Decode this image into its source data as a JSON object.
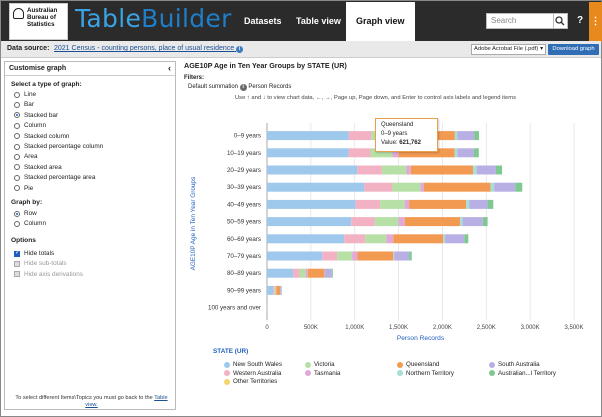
{
  "header": {
    "logo_lines": [
      "Australian",
      "Bureau of",
      "Statistics"
    ],
    "brand_a": "Table",
    "brand_b": "Builder",
    "nav": [
      "Datasets",
      "Table view",
      "Graph view"
    ],
    "search_placeholder": "Search",
    "help_label": "?",
    "menu_label": "⋮"
  },
  "datasource": {
    "label": "Data source:",
    "value": "2021 Census - counting persons, place of usual residence",
    "format": "Adobe Acrobat File (.pdf)",
    "download_label": "Download graph"
  },
  "sidebar": {
    "title": "Customise graph",
    "type_heading": "Select a type of graph:",
    "types": [
      "Line",
      "Bar",
      "Stacked bar",
      "Column",
      "Stacked column",
      "Stacked percentage column",
      "Area",
      "Stacked area",
      "Stacked percentage area",
      "Pie"
    ],
    "type_selected": "Stacked bar",
    "graphby_heading": "Graph by:",
    "graphby": [
      "Row",
      "Column"
    ],
    "graphby_selected": "Row",
    "options_heading": "Options",
    "options": [
      {
        "label": "Hide totals",
        "checked": true,
        "disabled": false
      },
      {
        "label": "Hide sub-totals",
        "checked": false,
        "disabled": true
      },
      {
        "label": "Hide axis derivations",
        "checked": false,
        "disabled": true
      }
    ],
    "footer_text": "To select different Items\\Topics you must go back to the",
    "footer_link": "Table view."
  },
  "graph": {
    "title": "AGE10P Age in Ten Year Groups by STATE (UR)",
    "filters_label": "Filters:",
    "filter_name": "Default summation",
    "filter_value": "Person Records",
    "hint": "Use ↑ and ↓ to view chart data, ←, →, Page up, Page down, and Enter to control axis labels and legend items",
    "tooltip": {
      "series": "Queensland",
      "category": "0–9 years",
      "value_label": "Value:",
      "value": "621,762"
    }
  },
  "chart_data": {
    "type": "bar",
    "orientation": "horizontal",
    "stacked": true,
    "xlabel": "Person Records",
    "ylabel": "AGE10P Age in Ten Year Groups",
    "xlim": [
      0,
      3500000
    ],
    "xticks": [
      "0",
      "500K",
      "1,000K",
      "1,500K",
      "2,000K",
      "2,500K",
      "3,000K",
      "3,500K"
    ],
    "categories": [
      "0–9 years",
      "10–19 years",
      "20–29 years",
      "30–39 years",
      "40–49 years",
      "50–59 years",
      "60–69 years",
      "70–79 years",
      "80–89 years",
      "90–99 years",
      "100 years and over"
    ],
    "legend_title": "STATE (UR)",
    "series": [
      {
        "name": "New South Wales",
        "color": "#9ec9ec",
        "values": [
          930000,
          930000,
          1030000,
          1110000,
          1010000,
          960000,
          880000,
          630000,
          300000,
          70000,
          2000
        ]
      },
      {
        "name": "Western Australia",
        "color": "#f3b2c4",
        "values": [
          260000,
          250000,
          280000,
          320000,
          280000,
          270000,
          240000,
          170000,
          70000,
          15000,
          500
        ]
      },
      {
        "name": "Victoria",
        "color": "#b7e0a6",
        "values": [
          260000,
          250000,
          280000,
          320000,
          280000,
          270000,
          240000,
          170000,
          70000,
          15000,
          500
        ]
      },
      {
        "name": "Tasmania",
        "color": "#e2a9d8",
        "values": [
          70000,
          70000,
          50000,
          40000,
          50000,
          70000,
          80000,
          60000,
          25000,
          5000,
          100
        ]
      },
      {
        "name": "Queensland",
        "color": "#f39a52",
        "values": [
          621762,
          640000,
          710000,
          760000,
          650000,
          630000,
          570000,
          410000,
          190000,
          45000,
          1000
        ]
      },
      {
        "name": "Northern Territory",
        "color": "#a5dfd6",
        "values": [
          30000,
          30000,
          40000,
          40000,
          35000,
          30000,
          20000,
          10000,
          3000,
          500,
          0
        ]
      },
      {
        "name": "South Australia",
        "color": "#b8b0e4",
        "values": [
          190000,
          190000,
          220000,
          240000,
          210000,
          230000,
          220000,
          170000,
          80000,
          15000,
          300
        ]
      },
      {
        "name": "Australian...l Territory",
        "color": "#7fc891",
        "values": [
          55000,
          55000,
          70000,
          80000,
          65000,
          55000,
          45000,
          30000,
          12000,
          2000,
          0
        ]
      },
      {
        "name": "Other Territories",
        "color": "#f6d36c",
        "values": [
          500,
          500,
          500,
          500,
          500,
          500,
          500,
          300,
          100,
          0,
          0
        ]
      }
    ]
  }
}
